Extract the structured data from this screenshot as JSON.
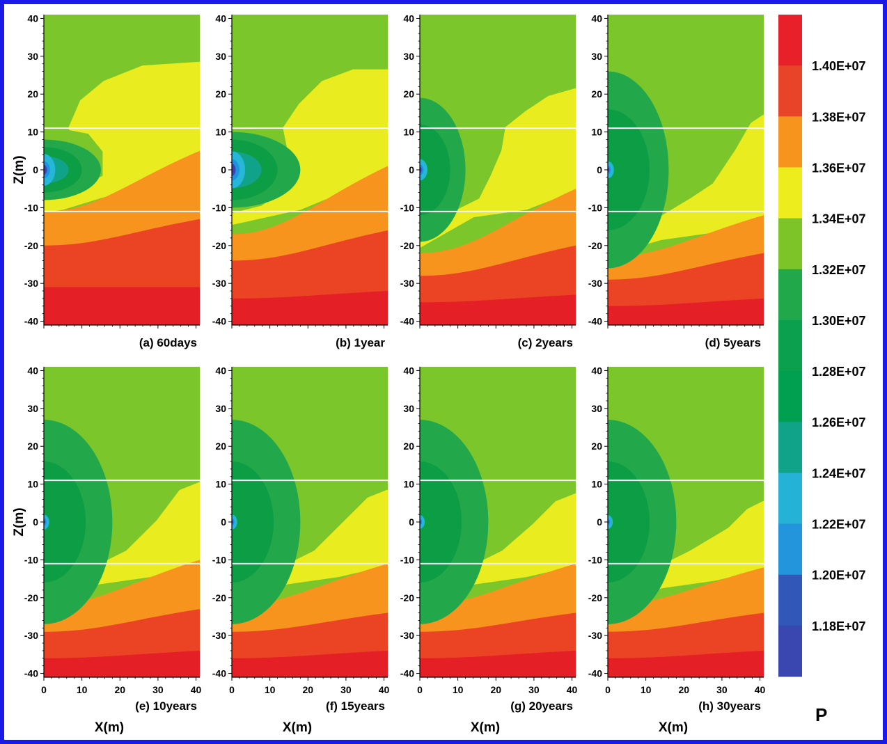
{
  "chart_data": {
    "type": "heatmap",
    "variable_label": "P",
    "x_axis_label": "X(m)",
    "z_axis_label": "Z(m)",
    "xlim": [
      0,
      41
    ],
    "zlim": [
      -41,
      41
    ],
    "x_ticks": [
      0,
      10,
      20,
      30,
      40
    ],
    "z_ticks": [
      40,
      30,
      20,
      10,
      0,
      -10,
      -20,
      -30,
      -40
    ],
    "layer_boundaries_z": [
      11,
      -11
    ],
    "legend": {
      "levels": [
        "1.40E+07",
        "1.38E+07",
        "1.36E+07",
        "1.34E+07",
        "1.32E+07",
        "1.30E+07",
        "1.28E+07",
        "1.26E+07",
        "1.24E+07",
        "1.22E+07",
        "1.20E+07",
        "1.18E+07"
      ],
      "colors": [
        "#e8202a",
        "#e8442a",
        "#f7941d",
        "#eded1e",
        "#7dc428",
        "#20a84a",
        "#0aa04e",
        "#00a050",
        "#11a38a",
        "#24b3d6",
        "#2295dd",
        "#3158b8",
        "#3a47b0"
      ]
    },
    "panels": [
      {
        "id": "a",
        "caption": "(a) 60days"
      },
      {
        "id": "b",
        "caption": "(b) 1year"
      },
      {
        "id": "c",
        "caption": "(c) 2years"
      },
      {
        "id": "d",
        "caption": "(d) 5years"
      },
      {
        "id": "e",
        "caption": "(e) 10years"
      },
      {
        "id": "f",
        "caption": "(f) 15years"
      },
      {
        "id": "g",
        "caption": "(g) 20years"
      },
      {
        "id": "h",
        "caption": "(h) 30years"
      }
    ]
  }
}
